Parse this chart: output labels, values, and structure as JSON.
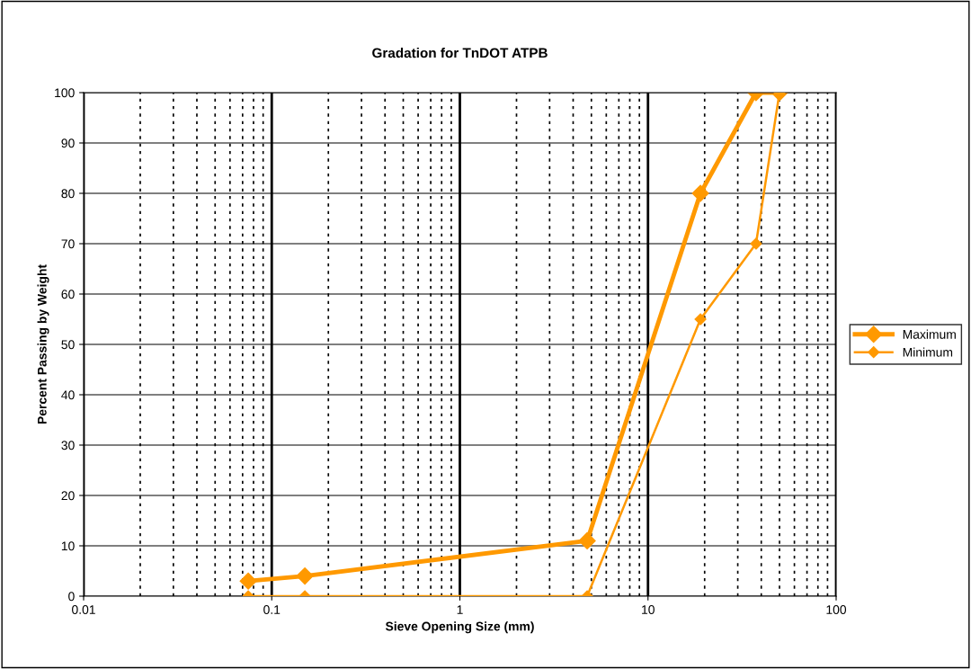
{
  "chart_data": {
    "type": "line",
    "title": "Gradation for TnDOT ATPB",
    "xlabel": "Sieve Opening Size (mm)",
    "ylabel": "Percent Passing by Weight",
    "x": [
      0.075,
      0.15,
      4.75,
      19,
      37.5,
      50
    ],
    "series": [
      {
        "name": "Maximum",
        "color": "#ff9900",
        "values": [
          3,
          4,
          11,
          80,
          100,
          100
        ]
      },
      {
        "name": "Minimum",
        "color": "#ff9900",
        "values": [
          0,
          0,
          0,
          55,
          70,
          100
        ]
      }
    ],
    "log": "x",
    "xlim": [
      0.01,
      100
    ],
    "xticks": [
      0.01,
      0.1,
      1,
      10,
      100
    ],
    "ylim": [
      0,
      100
    ],
    "yticks": [
      0,
      10,
      20,
      30,
      40,
      50,
      60,
      70,
      80,
      90,
      100
    ],
    "grid": true,
    "legend": "right",
    "marker": "diamond",
    "line_style": "solid"
  }
}
